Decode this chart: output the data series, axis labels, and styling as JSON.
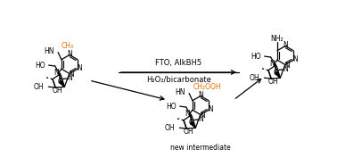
{
  "bg_color": "#ffffff",
  "bond_color": "#000000",
  "orange_color": "#e07000",
  "text_color": "#000000",
  "reaction_label_top": "FTO, AlkBH5",
  "reaction_label_bottom": "H₂O₂/bicarbonate",
  "new_intermediate_label": "new intermediate",
  "ch3_label": "CH₃",
  "ch2ooh_label": "CH₂OOH",
  "figsize": [
    3.78,
    1.86
  ],
  "dpi": 100,
  "lw": 0.9,
  "fs": 5.5,
  "bl": 10.5
}
